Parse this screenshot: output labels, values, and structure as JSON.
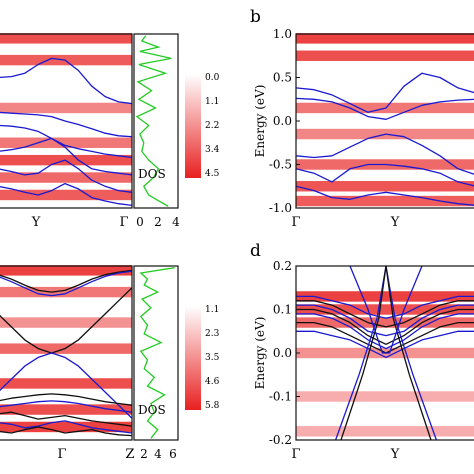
{
  "panels": {
    "a": {
      "letter": ""
    },
    "b": {
      "letter": "b"
    },
    "c": {
      "letter": ""
    },
    "d": {
      "letter": "d"
    }
  },
  "chart_data": [
    {
      "id": "panel-a",
      "type": "line",
      "title": "",
      "xlabel": "",
      "ylabel": "",
      "x_tick_labels": [
        "Y",
        "Γ"
      ],
      "x": [
        0,
        0.1,
        0.2,
        0.3,
        0.4,
        0.5,
        0.6,
        0.7,
        0.8,
        0.9,
        1.0
      ],
      "ylim": [
        -1.0,
        1.0
      ],
      "series": [
        {
          "values": [
            0.5,
            0.51,
            0.55,
            0.65,
            0.72,
            0.7,
            0.58,
            0.4,
            0.28,
            0.22,
            0.2
          ]
        },
        {
          "values": [
            0.1,
            0.09,
            0.08,
            0.07,
            0.05,
            0.0,
            -0.04,
            -0.09,
            -0.14,
            -0.17,
            -0.18
          ]
        },
        {
          "values": [
            -0.05,
            -0.06,
            -0.08,
            -0.12,
            -0.2,
            -0.28,
            -0.32,
            -0.35,
            -0.38,
            -0.4,
            -0.42
          ]
        },
        {
          "values": [
            -0.35,
            -0.33,
            -0.3,
            -0.25,
            -0.2,
            -0.3,
            -0.45,
            -0.55,
            -0.58,
            -0.6,
            -0.62
          ]
        },
        {
          "values": [
            -0.55,
            -0.58,
            -0.62,
            -0.6,
            -0.5,
            -0.45,
            -0.55,
            -0.68,
            -0.75,
            -0.8,
            -0.82
          ]
        },
        {
          "values": [
            -0.75,
            -0.78,
            -0.82,
            -0.85,
            -0.8,
            -0.72,
            -0.78,
            -0.88,
            -0.92,
            -0.95,
            -0.97
          ]
        }
      ],
      "heat_bands": [
        {
          "y": 0.95,
          "intensity": 0.9
        },
        {
          "y": 0.7,
          "intensity": 0.8
        },
        {
          "y": 0.15,
          "intensity": 0.5
        },
        {
          "y": -0.25,
          "intensity": 0.6
        },
        {
          "y": -0.45,
          "intensity": 0.9
        },
        {
          "y": -0.65,
          "intensity": 0.7
        },
        {
          "y": -0.85,
          "intensity": 0.8
        }
      ]
    },
    {
      "id": "panel-a-dos",
      "type": "line",
      "title": "",
      "annotation": "DOS",
      "x_ticks": [
        0,
        2,
        4
      ],
      "xlim": [
        0,
        4.5
      ],
      "ylim": [
        -1.0,
        1.0
      ],
      "series": [
        {
          "name": "DOS",
          "color": "#22cc22",
          "x": [
            1.2,
            0.8,
            2.5,
            0.6,
            3.8,
            0.5,
            3.2,
            0.4,
            1.8,
            0.5,
            2.2,
            0.3,
            1.5,
            0.6,
            1.0,
            0.8,
            1.5,
            2.5,
            2.0,
            1.0,
            1.5,
            3.5
          ],
          "y": [
            0.98,
            0.92,
            0.85,
            0.8,
            0.72,
            0.65,
            0.55,
            0.45,
            0.35,
            0.25,
            0.15,
            0.05,
            -0.05,
            -0.15,
            -0.25,
            -0.35,
            -0.45,
            -0.55,
            -0.65,
            -0.75,
            -0.85,
            -0.98
          ]
        }
      ],
      "colorbar": {
        "ticks": [
          "0.0",
          "1.1",
          "2.2",
          "3.4",
          "4.5"
        ],
        "colors": [
          "#ffffff",
          "#e82020"
        ]
      }
    },
    {
      "id": "panel-b",
      "type": "line",
      "title": "",
      "xlabel": "",
      "ylabel": "Energy (eV)",
      "x_tick_labels": [
        "Γ",
        "Y"
      ],
      "y_ticks": [
        "1.0",
        "0.5",
        "0.0",
        "-0.5",
        "-1.0"
      ],
      "ylim": [
        -1.0,
        1.0
      ],
      "x": [
        0,
        0.1,
        0.2,
        0.3,
        0.4,
        0.5,
        0.6,
        0.7,
        0.8,
        0.9,
        1.0
      ],
      "series": [
        {
          "values": [
            0.38,
            0.36,
            0.3,
            0.2,
            0.1,
            0.15,
            0.4,
            0.55,
            0.5,
            0.38,
            0.32
          ]
        },
        {
          "values": [
            0.26,
            0.25,
            0.22,
            0.15,
            0.05,
            0.02,
            0.1,
            0.18,
            0.22,
            0.24,
            0.25
          ]
        },
        {
          "values": [
            -0.4,
            -0.42,
            -0.4,
            -0.3,
            -0.2,
            -0.15,
            -0.18,
            -0.28,
            -0.4,
            -0.55,
            -0.62
          ]
        },
        {
          "values": [
            -0.55,
            -0.6,
            -0.7,
            -0.55,
            -0.5,
            -0.5,
            -0.52,
            -0.55,
            -0.6,
            -0.7,
            -0.75
          ]
        },
        {
          "values": [
            -0.75,
            -0.8,
            -0.88,
            -0.9,
            -0.85,
            -0.82,
            -0.85,
            -0.88,
            -0.92,
            -0.95,
            -0.97
          ]
        }
      ],
      "heat_bands": [
        {
          "y": 0.95,
          "intensity": 1.0
        },
        {
          "y": 0.75,
          "intensity": 0.9
        },
        {
          "y": 0.15,
          "intensity": 0.6
        },
        {
          "y": -0.15,
          "intensity": 0.5
        },
        {
          "y": -0.5,
          "intensity": 0.7
        },
        {
          "y": -0.75,
          "intensity": 0.85
        },
        {
          "y": -0.92,
          "intensity": 0.8
        }
      ]
    },
    {
      "id": "panel-c",
      "type": "line",
      "title": "",
      "xlabel": "",
      "ylabel": "",
      "x_tick_labels": [
        "Γ",
        "Z"
      ],
      "x": [
        0,
        0.1,
        0.2,
        0.3,
        0.4,
        0.5,
        0.6,
        0.7,
        0.8,
        0.9,
        1.0
      ],
      "ylim": [
        -1.0,
        1.0
      ],
      "series": [
        {
          "color": "#111111",
          "values": [
            0.9,
            0.85,
            0.78,
            0.72,
            0.7,
            0.72,
            0.78,
            0.85,
            0.9,
            0.93,
            0.95
          ]
        },
        {
          "color": "#1a1ad0",
          "values": [
            0.88,
            0.82,
            0.75,
            0.68,
            0.66,
            0.68,
            0.75,
            0.82,
            0.88,
            0.92,
            0.94
          ]
        },
        {
          "color": "#111111",
          "values": [
            0.45,
            0.3,
            0.15,
            0.05,
            0.0,
            0.05,
            0.15,
            0.3,
            0.45,
            0.6,
            0.75
          ]
        },
        {
          "color": "#1a1ad0",
          "values": [
            -0.45,
            -0.3,
            -0.15,
            -0.05,
            0.0,
            -0.05,
            -0.15,
            -0.3,
            -0.45,
            -0.6,
            -0.75
          ]
        },
        {
          "color": "#111111",
          "values": [
            -0.55,
            -0.52,
            -0.5,
            -0.48,
            -0.47,
            -0.48,
            -0.5,
            -0.53,
            -0.56,
            -0.58,
            -0.6
          ]
        },
        {
          "color": "#1a1ad0",
          "values": [
            -0.62,
            -0.6,
            -0.58,
            -0.56,
            -0.55,
            -0.56,
            -0.58,
            -0.61,
            -0.64,
            -0.66,
            -0.68
          ]
        },
        {
          "color": "#111111",
          "values": [
            -0.7,
            -0.68,
            -0.72,
            -0.76,
            -0.74,
            -0.72,
            -0.75,
            -0.78,
            -0.8,
            -0.82,
            -0.84
          ]
        },
        {
          "color": "#1a1ad0",
          "values": [
            -0.8,
            -0.82,
            -0.86,
            -0.84,
            -0.8,
            -0.78,
            -0.82,
            -0.86,
            -0.88,
            -0.9,
            -0.92
          ]
        },
        {
          "color": "#111111",
          "values": [
            -0.9,
            -0.92,
            -0.88,
            -0.85,
            -0.88,
            -0.92,
            -0.9,
            -0.88,
            -0.92,
            -0.94,
            -0.95
          ]
        }
      ],
      "heat_bands": [
        {
          "y": 0.95,
          "intensity": 1.0
        },
        {
          "y": 0.7,
          "intensity": 0.6
        },
        {
          "y": 0.35,
          "intensity": 0.4
        },
        {
          "y": 0.05,
          "intensity": 0.7
        },
        {
          "y": -0.35,
          "intensity": 0.9
        },
        {
          "y": -0.65,
          "intensity": 0.9
        },
        {
          "y": -0.85,
          "intensity": 1.0
        }
      ]
    },
    {
      "id": "panel-c-dos",
      "type": "line",
      "title": "",
      "annotation": "DOS",
      "x_ticks": [
        2,
        4,
        6
      ],
      "xlim": [
        0,
        6.5
      ],
      "ylim": [
        -1.0,
        1.0
      ],
      "series": [
        {
          "name": "DOS",
          "color": "#22cc22",
          "x": [
            6.0,
            1.0,
            2.0,
            1.5,
            3.5,
            1.2,
            2.5,
            1.0,
            2.0,
            1.5,
            4.0,
            1.0,
            2.0,
            1.5,
            3.0,
            2.0,
            4.5,
            2.5,
            3.0,
            2.0,
            3.5,
            2.5
          ],
          "y": [
            0.98,
            0.92,
            0.85,
            0.78,
            0.7,
            0.62,
            0.52,
            0.42,
            0.32,
            0.22,
            0.12,
            0.02,
            -0.08,
            -0.18,
            -0.28,
            -0.38,
            -0.48,
            -0.58,
            -0.68,
            -0.78,
            -0.88,
            -0.98
          ]
        }
      ],
      "colorbar": {
        "ticks": [
          "1.1",
          "2.3",
          "3.5",
          "4.6",
          "5.8"
        ],
        "colors": [
          "#ffffff",
          "#e82020"
        ]
      }
    },
    {
      "id": "panel-d",
      "type": "line",
      "title": "",
      "xlabel": "",
      "ylabel": "Energy (eV)",
      "x_tick_labels": [
        "Γ",
        "Y"
      ],
      "y_ticks": [
        "0.2",
        "0.1",
        "0.0",
        "-0.1",
        "-0.2"
      ],
      "ylim": [
        -0.2,
        0.2
      ],
      "x": [
        0,
        0.1,
        0.2,
        0.3,
        0.4,
        0.5,
        0.6,
        0.7,
        0.8,
        0.9,
        1.0
      ],
      "series": [
        {
          "color": "#1a1ad0",
          "values": [
            0.13,
            0.13,
            0.12,
            0.11,
            0.09,
            0.08,
            0.09,
            0.11,
            0.12,
            0.13,
            0.13
          ]
        },
        {
          "color": "#111111",
          "values": [
            0.12,
            0.12,
            0.11,
            0.09,
            0.07,
            0.06,
            0.07,
            0.09,
            0.11,
            0.12,
            0.12
          ]
        },
        {
          "color": "#1a1ad0",
          "values": [
            0.11,
            0.11,
            0.1,
            0.08,
            0.05,
            0.04,
            0.05,
            0.08,
            0.1,
            0.11,
            0.11
          ]
        },
        {
          "color": "#111111",
          "values": [
            0.1,
            0.1,
            0.09,
            0.07,
            0.04,
            0.02,
            0.04,
            0.07,
            0.09,
            0.1,
            0.1
          ]
        },
        {
          "color": "#1a1ad0",
          "values": [
            0.09,
            0.09,
            0.08,
            0.06,
            0.03,
            0.01,
            0.03,
            0.06,
            0.08,
            0.09,
            0.09
          ]
        },
        {
          "color": "#111111",
          "values": [
            0.07,
            0.07,
            0.06,
            0.04,
            0.02,
            0.0,
            0.02,
            0.04,
            0.06,
            0.07,
            0.07
          ]
        },
        {
          "color": "#1a1ad0",
          "values": [
            0.05,
            0.05,
            0.04,
            0.03,
            0.01,
            -0.01,
            0.01,
            0.03,
            0.04,
            0.05,
            0.05
          ]
        }
      ],
      "steep_bands": [
        {
          "color": "#1a1ad0",
          "x": [
            0.22,
            0.35,
            0.45,
            0.5,
            0.55,
            0.65,
            0.78
          ],
          "y": [
            -0.2,
            -0.05,
            0.08,
            0.2,
            0.08,
            -0.05,
            -0.2
          ]
        },
        {
          "color": "#111111",
          "x": [
            0.25,
            0.37,
            0.46,
            0.5,
            0.54,
            0.63,
            0.75
          ],
          "y": [
            -0.2,
            -0.05,
            0.08,
            0.2,
            0.08,
            -0.05,
            -0.2
          ]
        },
        {
          "color": "#1a1ad0",
          "x": [
            0.3,
            0.4,
            0.48,
            0.52,
            0.6,
            0.7
          ],
          "y": [
            0.2,
            0.1,
            0.0,
            0.0,
            0.1,
            0.2
          ]
        }
      ],
      "heat_bands": [
        {
          "y": 0.13,
          "intensity": 1.0
        },
        {
          "y": 0.1,
          "intensity": 0.9
        },
        {
          "y": 0.07,
          "intensity": 0.7
        },
        {
          "y": 0.0,
          "intensity": 0.4
        },
        {
          "y": -0.1,
          "intensity": 0.2
        },
        {
          "y": -0.18,
          "intensity": 0.2
        }
      ]
    }
  ]
}
